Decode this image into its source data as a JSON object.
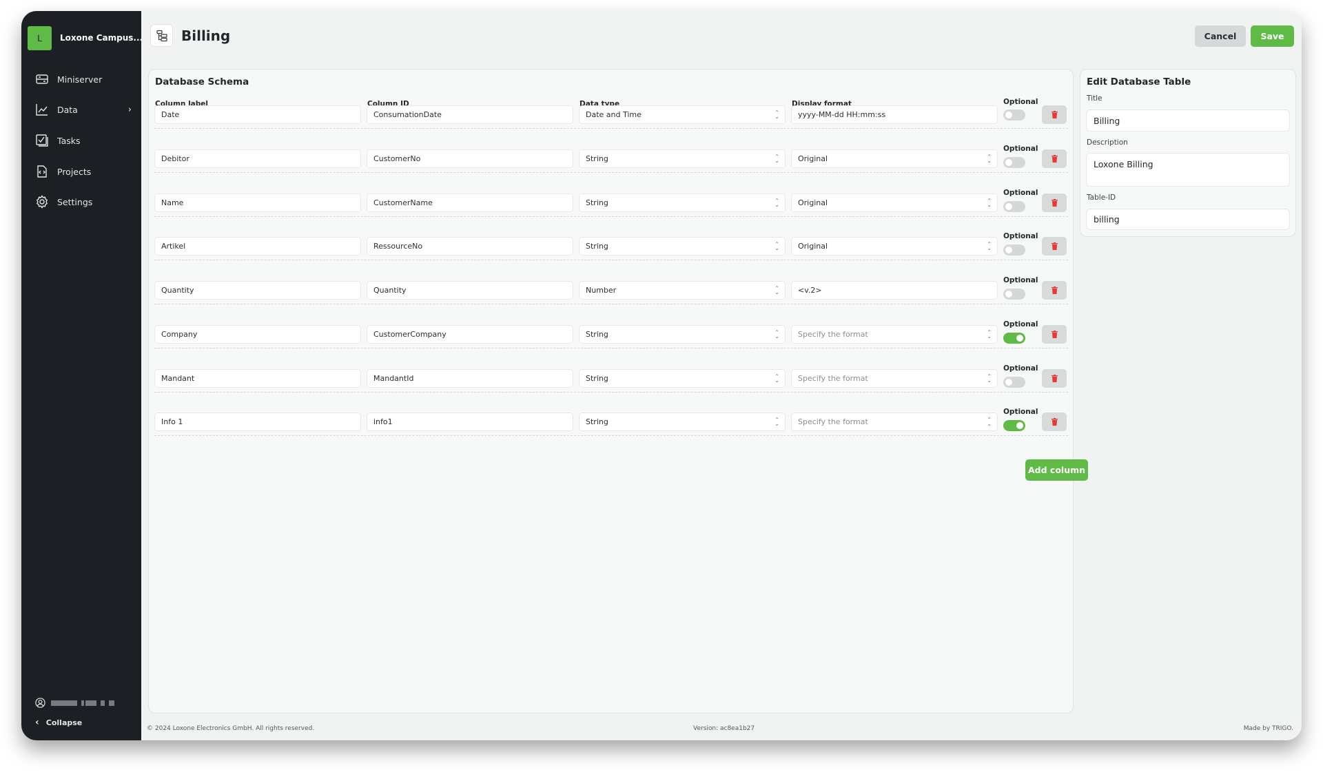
{
  "sidebar": {
    "logo_letter": "L",
    "org_name": "Loxone Campus...",
    "items": [
      {
        "label": "Miniserver",
        "icon": "server-icon"
      },
      {
        "label": "Data",
        "icon": "chart-line-icon",
        "has_submenu": true
      },
      {
        "label": "Tasks",
        "icon": "checkbox-icon"
      },
      {
        "label": "Projects",
        "icon": "code-file-icon"
      },
      {
        "label": "Settings",
        "icon": "gear-icon"
      }
    ],
    "collapse_label": "Collapse"
  },
  "header": {
    "title": "Billing",
    "icon": "table-tree-icon",
    "cancel_label": "Cancel",
    "save_label": "Save"
  },
  "schema": {
    "title": "Database Schema",
    "headers": {
      "label": "Column label",
      "id": "Column ID",
      "type": "Data type",
      "format": "Display format",
      "optional": "Optional"
    },
    "format_placeholder": "Specify the format",
    "rows": [
      {
        "label": "Date",
        "id": "ConsumationDate",
        "type": "Date and Time",
        "format": "yyyy-MM-dd HH:mm:ss",
        "format_is_select": false,
        "optional": false
      },
      {
        "label": "Debitor",
        "id": "CustomerNo",
        "type": "String",
        "format": "Original",
        "format_is_select": true,
        "optional": false
      },
      {
        "label": "Name",
        "id": "CustomerName",
        "type": "String",
        "format": "Original",
        "format_is_select": true,
        "optional": false
      },
      {
        "label": "Artikel",
        "id": "RessourceNo",
        "type": "String",
        "format": "Original",
        "format_is_select": true,
        "optional": false
      },
      {
        "label": "Quantity",
        "id": "Quantity",
        "type": "Number",
        "format": "<v.2>",
        "format_is_select": false,
        "optional": false
      },
      {
        "label": "Company",
        "id": "CustomerCompany",
        "type": "String",
        "format": "",
        "format_is_select": true,
        "optional": true
      },
      {
        "label": "Mandant",
        "id": "MandantId",
        "type": "String",
        "format": "",
        "format_is_select": true,
        "optional": false
      },
      {
        "label": "Info 1",
        "id": "info1",
        "type": "String",
        "format": "",
        "format_is_select": true,
        "optional": true
      }
    ],
    "add_column_label": "Add column"
  },
  "edit_table": {
    "title": "Edit Database Table",
    "title_label": "Title",
    "title_value": "Billing",
    "description_label": "Description",
    "description_value": "Loxone Billing",
    "table_id_label": "Table-ID",
    "table_id_value": "billing"
  },
  "footer": {
    "copyright": "© 2024 Loxone Electronics GmbH. All rights reserved.",
    "version": "Version: ac8ea1b27",
    "made_by": "Made by TRIGO."
  },
  "colors": {
    "accent": "#5fba46",
    "sidebar": "#1c2024",
    "delete": "#e53935"
  }
}
